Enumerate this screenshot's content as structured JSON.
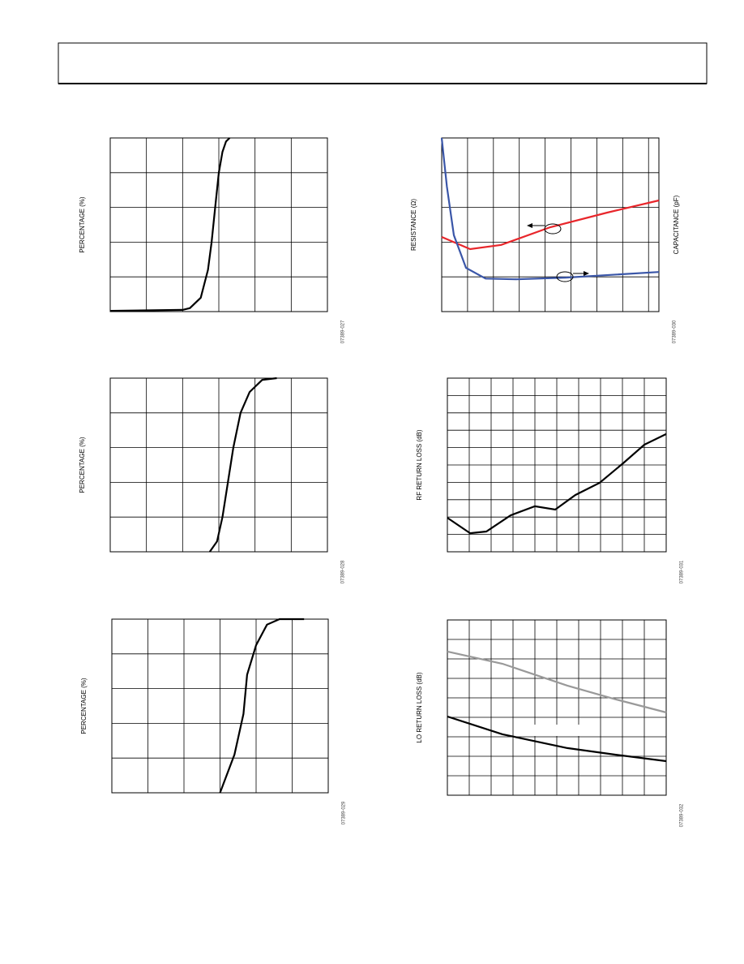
{
  "chart_data": [
    {
      "type": "line",
      "ylabel": "PERCENTAGE (%)",
      "figure_id": "07389-027",
      "grid": true,
      "xlim": [
        0,
        6
      ],
      "ylim": [
        0,
        5
      ],
      "xticks": [
        1,
        2,
        3,
        4,
        5
      ],
      "yticks": [
        1,
        2,
        3,
        4
      ],
      "series": [
        {
          "color": "#000000",
          "x": [
            0,
            2,
            2.2,
            2.5,
            2.7,
            2.8,
            2.9,
            3.0,
            3.1,
            3.2,
            3.3
          ],
          "values": [
            0.02,
            0.05,
            0.1,
            0.4,
            1.2,
            2,
            3,
            4,
            4.6,
            4.9,
            5
          ]
        }
      ]
    },
    {
      "type": "line",
      "ylabel": "RESISTANCE (Ω)",
      "y2label": "CAPACITANCE (pF)",
      "figure_id": "07389-030",
      "grid": true,
      "xlim": [
        0,
        8.4
      ],
      "ylim": [
        0,
        5
      ],
      "xticks": [
        1,
        2,
        3,
        4,
        5,
        6,
        7,
        8
      ],
      "yticks": [
        1,
        2,
        3,
        4
      ],
      "series": [
        {
          "color": "#e8262b",
          "x": [
            0,
            1.1,
            2.3,
            4.2,
            6.4,
            8.4
          ],
          "values": [
            2.15,
            1.8,
            1.92,
            2.43,
            2.85,
            3.2
          ]
        },
        {
          "color": "#3a56a8",
          "x": [
            0,
            0.2,
            0.47,
            0.94,
            1.7,
            2.9,
            4.8,
            8.4
          ],
          "values": [
            5,
            3.6,
            2.2,
            1.26,
            0.95,
            0.93,
            0.98,
            1.14
          ]
        }
      ]
    },
    {
      "type": "line",
      "ylabel": "PERCENTAGE (%)",
      "figure_id": "07389-028",
      "grid": true,
      "xlim": [
        0,
        6
      ],
      "ylim": [
        0,
        5
      ],
      "xticks": [
        1,
        2,
        3,
        4,
        5
      ],
      "yticks": [
        1,
        2,
        3,
        4
      ],
      "series": [
        {
          "color": "#000000",
          "x": [
            2.75,
            2.95,
            3.1,
            3.25,
            3.4,
            3.6,
            3.85,
            4.2,
            4.6
          ],
          "values": [
            0,
            0.3,
            1,
            2,
            3,
            4,
            4.6,
            4.95,
            5
          ]
        }
      ]
    },
    {
      "type": "line",
      "ylabel": "RF RETURN LOSS (dB)",
      "figure_id": "07389-031",
      "grid": true,
      "xlim": [
        0,
        10
      ],
      "ylim": [
        0,
        10
      ],
      "xticks": [
        1,
        2,
        3,
        4,
        5,
        6,
        7,
        8,
        9
      ],
      "yticks": [
        1,
        2,
        3,
        4,
        5,
        6,
        7,
        8,
        9
      ],
      "series": [
        {
          "color": "#000000",
          "x": [
            0,
            1.04,
            1.78,
            2.89,
            4,
            4.93,
            5.85,
            6.96,
            8.07,
            9,
            10
          ],
          "values": [
            1.96,
            1.07,
            1.17,
            2.1,
            2.62,
            2.43,
            3.27,
            3.97,
            5.14,
            6.17,
            6.78
          ]
        }
      ]
    },
    {
      "type": "line",
      "ylabel": "PERCENTAGE (%)",
      "figure_id": "07389-029",
      "grid": true,
      "xlim": [
        0,
        6
      ],
      "ylim": [
        0,
        5
      ],
      "xticks": [
        1,
        2,
        3,
        4,
        5
      ],
      "yticks": [
        1,
        2,
        3,
        4
      ],
      "series": [
        {
          "color": "#000000",
          "x": [
            3.0,
            3.4,
            3.65,
            3.75,
            4.0,
            4.3,
            4.65,
            5.33
          ],
          "values": [
            0,
            1.1,
            2.27,
            3.4,
            4.25,
            4.84,
            5,
            5
          ]
        }
      ]
    },
    {
      "type": "line",
      "ylabel": "LO RETURN LOSS (dB)",
      "figure_id": "07389-032",
      "grid": true,
      "xlim": [
        0,
        10
      ],
      "ylim": [
        0,
        9
      ],
      "xticks": [
        1,
        2,
        3,
        4,
        5,
        6,
        7,
        8,
        9
      ],
      "yticks": [
        1,
        2,
        3,
        4,
        5,
        6,
        7,
        8
      ],
      "series": [
        {
          "color": "#999999",
          "x": [
            0,
            2.52,
            5.48,
            7.7,
            10
          ],
          "values": [
            7.38,
            6.75,
            5.63,
            4.92,
            4.25
          ]
        },
        {
          "color": "#000000",
          "x": [
            0,
            2.52,
            5.48,
            7.7,
            10
          ],
          "values": [
            4.04,
            3.13,
            2.42,
            2.08,
            1.75
          ]
        }
      ]
    }
  ]
}
